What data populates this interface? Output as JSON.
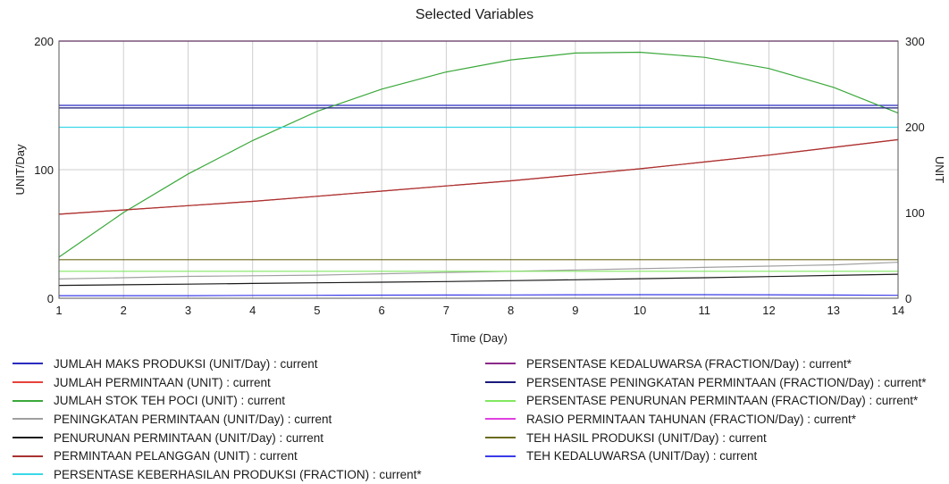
{
  "chart_data": {
    "type": "line",
    "title": "Selected Variables",
    "xlabel": "Time (Day)",
    "ylabel_left": "UNIT/Day",
    "ylabel_right": "UNIT",
    "x": [
      1,
      2,
      3,
      4,
      5,
      6,
      7,
      8,
      9,
      10,
      11,
      12,
      13,
      14
    ],
    "xlim": [
      1,
      14
    ],
    "ylim_left": [
      0,
      200
    ],
    "ylim_right": [
      0,
      300
    ],
    "yticks_left": [
      0,
      100,
      200
    ],
    "yticks_right": [
      0,
      100,
      200,
      300
    ],
    "grid": true,
    "legend_position": "bottom",
    "series": [
      {
        "name": "JUMLAH MAKS PRODUKSI (UNIT/Day) : current",
        "color": "#2b2bc0",
        "axis": "left",
        "values": [
          150,
          150,
          150,
          150,
          150,
          150,
          150,
          150,
          150,
          150,
          150,
          150,
          150,
          150
        ]
      },
      {
        "name": "JUMLAH PERMINTAAN (UNIT) : current",
        "color": "#e8423a",
        "axis": "right",
        "values": [
          98,
          103,
          108,
          113,
          119,
          125,
          131,
          137,
          144,
          151,
          159,
          167,
          176,
          185
        ]
      },
      {
        "name": "JUMLAH STOK TEH POCI (UNIT) : current",
        "color": "#3aa83a",
        "axis": "right",
        "values": [
          48,
          100,
          145,
          184,
          218,
          244,
          264,
          278,
          286,
          287,
          281,
          268,
          246,
          216
        ]
      },
      {
        "name": "PENINGKATAN PERMINTAAN (UNIT/Day) : current",
        "color": "#a0a0a0",
        "axis": "left",
        "values": [
          15,
          16,
          17,
          17.5,
          18,
          19,
          20,
          21,
          22,
          23,
          24,
          25,
          26,
          28
        ]
      },
      {
        "name": "PENURUNAN PERMINTAAN (UNIT/Day) : current",
        "color": "#1a1a1a",
        "axis": "left",
        "values": [
          10,
          10.5,
          11,
          11.5,
          12,
          12.5,
          13,
          13.7,
          14.4,
          15.2,
          16,
          16.9,
          17.8,
          18.7
        ]
      },
      {
        "name": "PERMINTAAN PELANGGAN (UNIT) : current",
        "color": "#a83232",
        "axis": "right",
        "values": [
          98,
          103,
          108,
          113,
          119,
          125,
          131,
          137,
          144,
          151,
          159,
          167,
          176,
          185
        ]
      },
      {
        "name": "PERSENTASE KEBERHASILAN PRODUKSI (FRACTION) : current*",
        "color": "#3ad8e8",
        "axis": "left",
        "values": [
          133,
          133,
          133,
          133,
          133,
          133,
          133,
          133,
          133,
          133,
          133,
          133,
          133,
          133
        ]
      },
      {
        "name": "PERSENTASE KEDALUWARSA (FRACTION/Day) : current*",
        "color": "#8a2a8a",
        "axis": "left",
        "values": [
          200,
          200,
          200,
          200,
          200,
          200,
          200,
          200,
          200,
          200,
          200,
          200,
          200,
          200
        ]
      },
      {
        "name": "PERSENTASE PENINGKATAN PERMINTAAN (FRACTION/Day) : current*",
        "color": "#1a1a7a",
        "axis": "left",
        "values": [
          148,
          148,
          148,
          148,
          148,
          148,
          148,
          148,
          148,
          148,
          148,
          148,
          148,
          148
        ]
      },
      {
        "name": "PERSENTASE PENURUNAN PERMINTAAN (FRACTION/Day) : current*",
        "color": "#80e860",
        "axis": "left",
        "values": [
          21,
          21,
          21,
          21,
          21,
          21,
          21,
          21,
          21,
          21,
          21,
          21,
          21,
          21
        ]
      },
      {
        "name": "RASIO PERMINTAAN TAHUNAN (FRACTION/Day) : current*",
        "color": "#e040e0",
        "axis": "left",
        "values": [
          200,
          200,
          200,
          200,
          200,
          200,
          200,
          200,
          200,
          200,
          200,
          200,
          200,
          200
        ]
      },
      {
        "name": "TEH HASIL PRODUKSI (UNIT/Day) : current",
        "color": "#6b6b1a",
        "axis": "left",
        "values": [
          30,
          30,
          30,
          30,
          30,
          30,
          30,
          30,
          30,
          30,
          30,
          30,
          30,
          30
        ]
      },
      {
        "name": "TEH KEDALUWARSA (UNIT/Day) : current",
        "color": "#3a3ae8",
        "axis": "left",
        "values": [
          2,
          2,
          2,
          2.2,
          2.3,
          2.4,
          2.5,
          2.6,
          2.7,
          2.8,
          2.8,
          2.7,
          2.5,
          2.3
        ]
      }
    ]
  }
}
